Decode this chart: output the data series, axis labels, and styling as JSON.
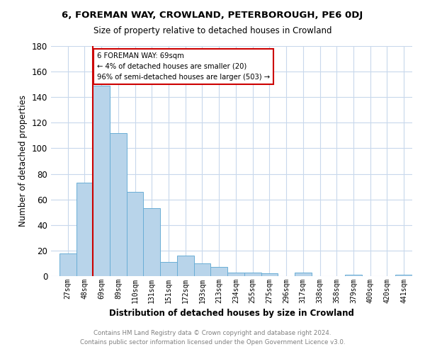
{
  "title1": "6, FOREMAN WAY, CROWLAND, PETERBOROUGH, PE6 0DJ",
  "title2": "Size of property relative to detached houses in Crowland",
  "xlabel": "Distribution of detached houses by size in Crowland",
  "ylabel": "Number of detached properties",
  "bar_labels": [
    "27sqm",
    "48sqm",
    "69sqm",
    "89sqm",
    "110sqm",
    "131sqm",
    "151sqm",
    "172sqm",
    "193sqm",
    "213sqm",
    "234sqm",
    "255sqm",
    "275sqm",
    "296sqm",
    "317sqm",
    "338sqm",
    "358sqm",
    "379sqm",
    "400sqm",
    "420sqm",
    "441sqm"
  ],
  "bar_values": [
    18,
    73,
    149,
    112,
    66,
    53,
    11,
    16,
    10,
    7,
    3,
    3,
    2,
    0,
    3,
    0,
    0,
    1,
    0,
    0,
    1
  ],
  "bar_color": "#b8d4ea",
  "bar_edge_color": "#6aaed6",
  "vline_x_index": 2,
  "vline_color": "#cc0000",
  "annotation_line1": "6 FOREMAN WAY: 69sqm",
  "annotation_line2": "← 4% of detached houses are smaller (20)",
  "annotation_line3": "96% of semi-detached houses are larger (503) →",
  "annotation_box_edge_color": "#cc0000",
  "annotation_box_face_color": "#ffffff",
  "ylim": [
    0,
    180
  ],
  "yticks": [
    0,
    20,
    40,
    60,
    80,
    100,
    120,
    140,
    160,
    180
  ],
  "footer_line1": "Contains HM Land Registry data © Crown copyright and database right 2024.",
  "footer_line2": "Contains public sector information licensed under the Open Government Licence v3.0.",
  "background_color": "#ffffff",
  "grid_color": "#c8d8ec"
}
